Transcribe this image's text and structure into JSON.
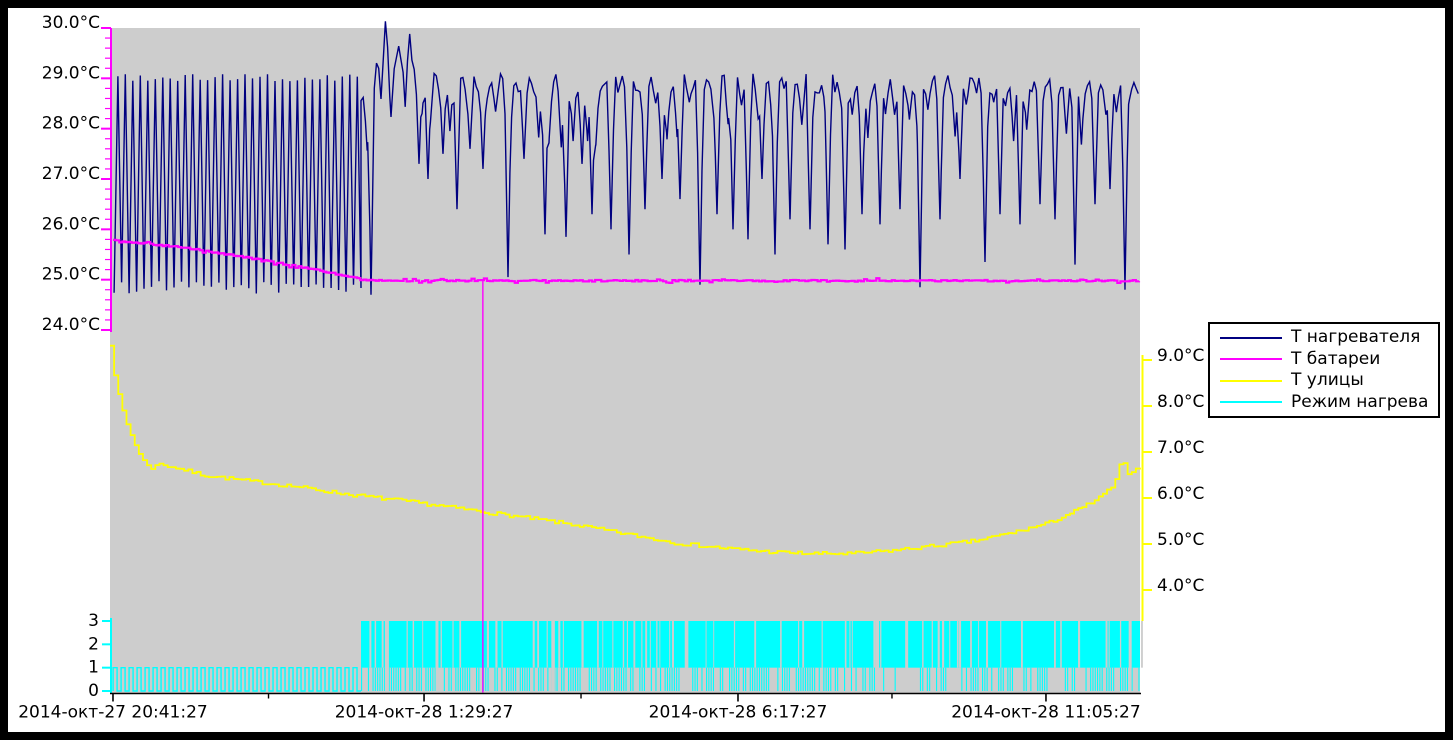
{
  "window": {
    "background": "#ffffff",
    "frame_color": "#000000",
    "plot_background": "#cdcdcd"
  },
  "legend": {
    "items": [
      {
        "label": "Т нагревателя",
        "color": "#000080"
      },
      {
        "label": "Т батареи",
        "color": "#ff00ff"
      },
      {
        "label": "Т улицы",
        "color": "#ffff00"
      },
      {
        "label": "Режим нагрева",
        "color": "#00ffff"
      }
    ]
  },
  "chart_data": {
    "type": "line",
    "title": "",
    "x_axis": {
      "axis_color": "#000000",
      "tick_labels": [
        "2014-окт-27 20:41:27",
        "2014-окт-28 1:29:27",
        "2014-окт-28 6:17:27",
        "2014-окт-28 11:05:27"
      ],
      "tick_positions": [
        0.0029,
        0.3049,
        0.6097,
        0.9087
      ],
      "minor_tick_positions": [
        0.1539,
        0.4573,
        0.7592
      ]
    },
    "y_left_axis": {
      "unit": "°C",
      "axis_color": "#ff00ff",
      "range": [
        24,
        30
      ],
      "tick_values": [
        30,
        29,
        28,
        27,
        26,
        25,
        24
      ],
      "tick_labels": [
        "30.0°C",
        "29.0°C",
        "28.0°C",
        "27.0°C",
        "26.0°C",
        "25.0°C",
        "24.0°C"
      ],
      "minor_step": 0.2
    },
    "y_right_axis": {
      "unit": "°C",
      "axis_color": "#ffff00",
      "range": [
        4,
        9
      ],
      "tick_values": [
        9,
        8,
        7,
        6,
        5,
        4
      ],
      "tick_labels": [
        "9.0°C",
        "8.0°C",
        "7.0°C",
        "6.0°C",
        "5.0°C",
        "4.0°C"
      ]
    },
    "y_mode_axis": {
      "axis_color": "#00ffff",
      "range": [
        0,
        3
      ],
      "tick_values": [
        3,
        2,
        1,
        0
      ],
      "tick_labels": [
        "3",
        "2",
        "1",
        "0"
      ]
    },
    "grid": false,
    "legend_position": "right",
    "series": [
      {
        "name": "Т нагревателя",
        "color": "#000080",
        "axis": "left",
        "oscillation": {
          "x0": 0.004,
          "x1": 0.2437,
          "min": 24.72,
          "max": 28.98,
          "cycles": 33
        },
        "base_points": [
          [
            0.2437,
            28.6
          ],
          [
            0.255,
            29.05
          ],
          [
            0.2602,
            29.5
          ],
          [
            0.267,
            30.0
          ],
          [
            0.2727,
            29.3
          ],
          [
            0.284,
            29.6
          ],
          [
            0.2893,
            29.85
          ],
          [
            0.2971,
            29.2
          ],
          [
            0.31,
            29.1
          ],
          [
            0.33,
            28.95
          ],
          [
            0.36,
            28.9
          ],
          [
            0.42,
            28.9
          ],
          [
            0.5,
            28.88
          ],
          [
            0.6,
            28.9
          ],
          [
            0.7,
            28.88
          ],
          [
            0.8,
            28.9
          ],
          [
            0.9,
            28.9
          ],
          [
            1.0,
            28.85
          ]
        ],
        "noise": 0.2,
        "dips": [
          [
            0.2534,
            24.7
          ],
          [
            0.3,
            27.3
          ],
          [
            0.3087,
            27.0
          ],
          [
            0.3233,
            27.5
          ],
          [
            0.3369,
            26.4
          ],
          [
            0.3495,
            27.6
          ],
          [
            0.3621,
            27.2
          ],
          [
            0.3864,
            25.05
          ],
          [
            0.4019,
            27.4
          ],
          [
            0.4223,
            25.9
          ],
          [
            0.4427,
            25.85
          ],
          [
            0.4583,
            27.3
          ],
          [
            0.468,
            26.3
          ],
          [
            0.4864,
            26.0
          ],
          [
            0.5039,
            25.5
          ],
          [
            0.5194,
            26.4
          ],
          [
            0.5359,
            27.0
          ],
          [
            0.5534,
            26.6
          ],
          [
            0.5728,
            24.9
          ],
          [
            0.5893,
            26.3
          ],
          [
            0.6049,
            26.0
          ],
          [
            0.6194,
            25.8
          ],
          [
            0.633,
            27.0
          ],
          [
            0.6456,
            25.5
          ],
          [
            0.6602,
            26.2
          ],
          [
            0.6796,
            26.0
          ],
          [
            0.6971,
            25.7
          ],
          [
            0.7136,
            25.6
          ],
          [
            0.7301,
            26.3
          ],
          [
            0.7476,
            26.1
          ],
          [
            0.767,
            26.4
          ],
          [
            0.7864,
            24.85
          ],
          [
            0.8058,
            26.2
          ],
          [
            0.8252,
            27.0
          ],
          [
            0.8495,
            25.35
          ],
          [
            0.8641,
            26.3
          ],
          [
            0.8835,
            26.1
          ],
          [
            0.9029,
            26.5
          ],
          [
            0.9175,
            26.2
          ],
          [
            0.9369,
            25.3
          ],
          [
            0.9563,
            26.5
          ],
          [
            0.9709,
            26.8
          ],
          [
            0.9854,
            24.8
          ]
        ]
      },
      {
        "name": "Т батареи",
        "color": "#ff00ff",
        "axis": "left",
        "points": [
          [
            0.003,
            25.78
          ],
          [
            0.03,
            25.73
          ],
          [
            0.06,
            25.66
          ],
          [
            0.09,
            25.58
          ],
          [
            0.12,
            25.48
          ],
          [
            0.15,
            25.38
          ],
          [
            0.18,
            25.27
          ],
          [
            0.21,
            25.15
          ],
          [
            0.23,
            25.07
          ],
          [
            0.2437,
            25.0
          ],
          [
            0.26,
            24.98
          ],
          [
            1.0,
            24.98
          ]
        ],
        "cursor_x": 0.362
      },
      {
        "name": "Т улицы",
        "color": "#ffff00",
        "axis": "right",
        "points": [
          [
            0.0,
            9.35
          ],
          [
            0.004,
            8.7
          ],
          [
            0.009,
            8.1
          ],
          [
            0.016,
            7.6
          ],
          [
            0.024,
            7.15
          ],
          [
            0.031,
            6.85
          ],
          [
            0.039,
            6.6
          ],
          [
            0.042,
            6.75
          ],
          [
            0.06,
            6.68
          ],
          [
            0.09,
            6.5
          ],
          [
            0.13,
            6.38
          ],
          [
            0.18,
            6.25
          ],
          [
            0.23,
            6.08
          ],
          [
            0.28,
            5.95
          ],
          [
            0.33,
            5.8
          ],
          [
            0.362,
            5.7
          ],
          [
            0.41,
            5.55
          ],
          [
            0.45,
            5.42
          ],
          [
            0.5,
            5.22
          ],
          [
            0.55,
            5.02
          ],
          [
            0.6,
            4.9
          ],
          [
            0.64,
            4.83
          ],
          [
            0.68,
            4.79
          ],
          [
            0.72,
            4.79
          ],
          [
            0.76,
            4.86
          ],
          [
            0.8,
            4.96
          ],
          [
            0.84,
            5.07
          ],
          [
            0.88,
            5.27
          ],
          [
            0.91,
            5.45
          ],
          [
            0.94,
            5.75
          ],
          [
            0.96,
            6.0
          ],
          [
            0.975,
            6.3
          ],
          [
            0.982,
            6.85
          ],
          [
            0.987,
            6.55
          ],
          [
            1.0,
            6.65
          ]
        ]
      },
      {
        "name": "Режим нагрева",
        "color": "#00ffff",
        "axis": "mode",
        "square_wave": {
          "x0": 0.003,
          "x1": 0.2437,
          "low": 0,
          "high": 1,
          "cycles": 31,
          "duty": 0.5
        },
        "bars": {
          "x0": 0.2437,
          "x1": 1.0,
          "top": 3,
          "mid": 1,
          "quiet_zones": [
            [
              0.764,
              0.783
            ],
            [
              0.813,
              0.825
            ],
            [
              0.91,
              0.925
            ],
            [
              0.939,
              0.945
            ]
          ],
          "major_gaps": [
            [
              0.2669,
              4
            ],
            [
              0.316,
              3
            ],
            [
              0.429,
              3
            ],
            [
              0.558,
              3
            ],
            [
              0.7428,
              4
            ],
            [
              0.772,
              3
            ],
            [
              0.989,
              3
            ]
          ]
        }
      }
    ]
  }
}
